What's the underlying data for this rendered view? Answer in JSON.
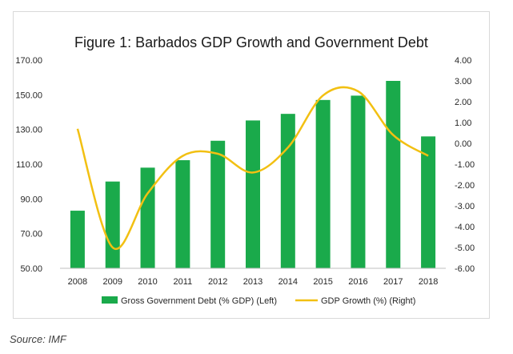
{
  "chart_data": {
    "type": "bar",
    "title": "Figure 1: Barbados GDP Growth and Government Debt",
    "categories": [
      "2008",
      "2009",
      "2010",
      "2011",
      "2012",
      "2013",
      "2014",
      "2015",
      "2016",
      "2017",
      "2018"
    ],
    "series": [
      {
        "name": "Gross Government Debt (% GDP) (Left)",
        "type": "bar",
        "axis": "left",
        "color": "#1aaa4b",
        "values": [
          83.2,
          100.0,
          108.0,
          112.3,
          123.5,
          135.2,
          139.0,
          147.0,
          149.5,
          158.0,
          126.0
        ]
      },
      {
        "name": "GDP Growth (%) (Right)",
        "type": "line",
        "axis": "right",
        "color": "#f2c012",
        "values": [
          0.7,
          -5.0,
          -2.4,
          -0.6,
          -0.5,
          -1.4,
          -0.2,
          2.3,
          2.5,
          0.4,
          -0.6
        ]
      }
    ],
    "y_left": {
      "min": 50,
      "max": 170,
      "step": 20,
      "tick_labels": [
        "50.00",
        "70.00",
        "90.00",
        "110.00",
        "130.00",
        "150.00",
        "170.00"
      ]
    },
    "y_right": {
      "min": -6,
      "max": 4,
      "step": 1,
      "tick_labels": [
        "-6.00",
        "-5.00",
        "-4.00",
        "-3.00",
        "-2.00",
        "-1.00",
        "0.00",
        "1.00",
        "2.00",
        "3.00",
        "4.00"
      ]
    },
    "legend_position": "bottom",
    "grid": false
  },
  "source": "Source: IMF"
}
